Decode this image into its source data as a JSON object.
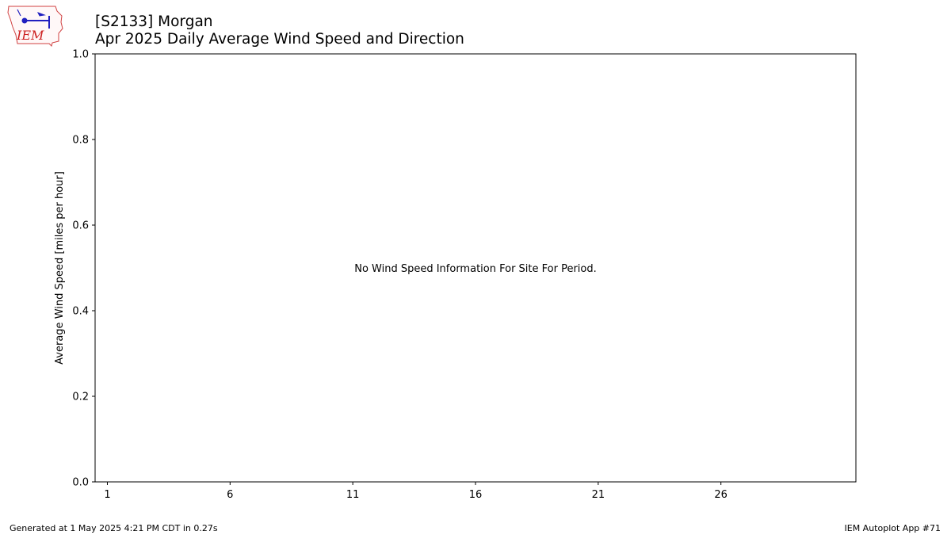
{
  "logo": {
    "text": "IEM"
  },
  "title": {
    "line1": "[S2133] Morgan",
    "line2": "Apr 2025 Daily Average Wind Speed and Direction"
  },
  "chart_data": {
    "type": "bar",
    "title": "[S2133] Morgan / Apr 2025 Daily Average Wind Speed and Direction",
    "xlabel": "",
    "ylabel": "Average Wind Speed [miles per hour]",
    "xlim": [
      0.5,
      31.5
    ],
    "ylim": [
      0.0,
      1.0
    ],
    "x_ticks": [
      1,
      6,
      11,
      16,
      21,
      26
    ],
    "y_ticks": [
      0.0,
      0.2,
      0.4,
      0.6,
      0.8,
      1.0
    ],
    "y_tick_labels": [
      "0.0",
      "0.2",
      "0.4",
      "0.6",
      "0.8",
      "1.0"
    ],
    "grid": false,
    "series": [],
    "annotation": "No Wind Speed Information For Site For Period."
  },
  "footer": {
    "left": "Generated at 1 May 2025 4:21 PM CDT in 0.27s",
    "right": "IEM Autoplot App #71"
  }
}
